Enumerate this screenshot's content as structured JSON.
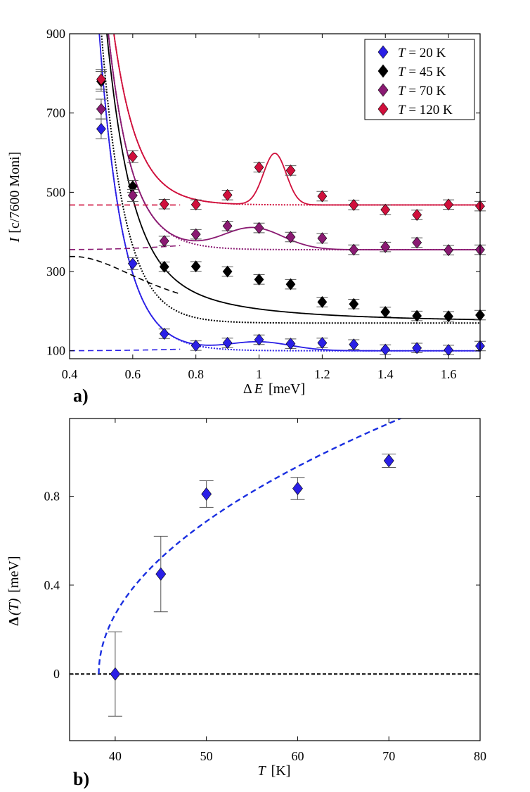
{
  "colors": {
    "t20": "#2a1fe6",
    "t45": "#000000",
    "t70": "#8a1a72",
    "t120": "#d0103c",
    "fitB": "#1a2fe0",
    "zero": "#000000"
  },
  "chart_data": [
    {
      "type": "scatter",
      "panel_label": "a)",
      "xlabel_symbol": "Δ",
      "xlabel_var": "E",
      "xlabel_unit": "[meV]",
      "ylabel_var": "I",
      "ylabel_unit": "[c/7600 Moni]",
      "xlim": [
        0.4,
        1.7
      ],
      "ylim": [
        80,
        900
      ],
      "xticks": [
        0.4,
        0.6,
        0.8,
        1,
        1.2,
        1.4,
        1.6
      ],
      "xtick_labels": [
        "0.4",
        "0.6",
        "0.8",
        "1",
        "1.2",
        "1.4",
        "1.6"
      ],
      "yticks": [
        100,
        300,
        500,
        700,
        900
      ],
      "ytick_labels": [
        "100",
        "300",
        "500",
        "700",
        "900"
      ],
      "legend_position": "top-right",
      "series": [
        {
          "key": "t20",
          "name": "T = 20 K",
          "legend_var": "T",
          "legend_text": " = 20 K",
          "x": [
            0.5,
            0.6,
            0.7,
            0.8,
            0.9,
            1.0,
            1.1,
            1.2,
            1.3,
            1.4,
            1.5,
            1.6,
            1.7
          ],
          "y": [
            660,
            320,
            143,
            113,
            120,
            128,
            118,
            120,
            116,
            103,
            107,
            102,
            112
          ],
          "err": [
            25,
            15,
            12,
            12,
            12,
            12,
            12,
            12,
            12,
            12,
            12,
            12,
            12
          ],
          "baseline": 100,
          "fit_peaks": [
            [
              1.0,
              22,
              0.2
            ]
          ],
          "bg_amp": 14,
          "bg_decay": 13
        },
        {
          "key": "t45",
          "name": "T = 45 K",
          "legend_var": "T",
          "legend_text": " = 45 K",
          "x": [
            0.5,
            0.6,
            0.7,
            0.8,
            0.9,
            1.0,
            1.1,
            1.2,
            1.3,
            1.4,
            1.5,
            1.6,
            1.7
          ],
          "y": [
            780,
            515,
            312,
            313,
            300,
            280,
            268,
            223,
            218,
            198,
            188,
            187,
            190
          ],
          "err": [
            25,
            15,
            12,
            12,
            12,
            12,
            12,
            12,
            12,
            12,
            12,
            12,
            12
          ],
          "baseline": 170,
          "paramagnon": [
            168,
            0.3,
            0.41
          ],
          "bg_amp": 14,
          "bg_decay": 13
        },
        {
          "key": "t70",
          "name": "T = 70 K",
          "legend_var": "T",
          "legend_text": " = 70 K",
          "x": [
            0.5,
            0.6,
            0.7,
            0.8,
            0.9,
            1.0,
            1.1,
            1.2,
            1.3,
            1.4,
            1.5,
            1.6,
            1.7
          ],
          "y": [
            710,
            492,
            377,
            394,
            415,
            410,
            387,
            384,
            355,
            362,
            373,
            354,
            355
          ],
          "err": [
            25,
            15,
            12,
            12,
            12,
            12,
            12,
            12,
            12,
            12,
            12,
            12,
            12
          ],
          "baseline": 355,
          "fit_peaks": [
            [
              0.98,
              55,
              0.19
            ]
          ],
          "bg_amp": 14,
          "bg_decay": 13
        },
        {
          "key": "t120",
          "name": "T = 120 K",
          "legend_var": "T",
          "legend_text": " = 120 K",
          "x": [
            0.5,
            0.6,
            0.7,
            0.8,
            0.9,
            1.0,
            1.1,
            1.2,
            1.3,
            1.4,
            1.5,
            1.6,
            1.7
          ],
          "y": [
            785,
            590,
            470,
            469,
            493,
            563,
            555,
            490,
            468,
            456,
            443,
            469,
            465
          ],
          "err": [
            25,
            15,
            12,
            12,
            12,
            12,
            12,
            12,
            12,
            12,
            12,
            12,
            12
          ],
          "baseline": 468,
          "fit_peaks": [
            [
              1.05,
              130,
              0.072
            ]
          ],
          "bg_amp": 14,
          "bg_decay": 13
        }
      ]
    },
    {
      "type": "scatter",
      "panel_label": "b)",
      "xlabel_var": "T",
      "xlabel_unit": "[K]",
      "ylabel_symbol": "Δ",
      "ylabel_var": "(T)",
      "ylabel_unit": "[meV]",
      "xlim": [
        35,
        80
      ],
      "ylim": [
        -0.3,
        1.15
      ],
      "xticks": [
        40,
        50,
        60,
        70,
        80
      ],
      "xtick_labels": [
        "40",
        "50",
        "60",
        "70",
        "80"
      ],
      "yticks": [
        0,
        0.4,
        0.8
      ],
      "ytick_labels": [
        "0",
        "0.4",
        "0.8"
      ],
      "series": [
        {
          "name": "Δ(T)",
          "x": [
            40,
            45,
            50,
            60,
            70
          ],
          "y": [
            0.0,
            0.45,
            0.81,
            0.835,
            0.96
          ],
          "err": [
            0.19,
            0.17,
            0.06,
            0.05,
            0.03
          ]
        }
      ],
      "fit": {
        "type": "power_law",
        "T0": 38.2,
        "amplitude": 0.2,
        "exponent": 0.5,
        "x_end": 79
      },
      "zero_line": 0
    }
  ]
}
